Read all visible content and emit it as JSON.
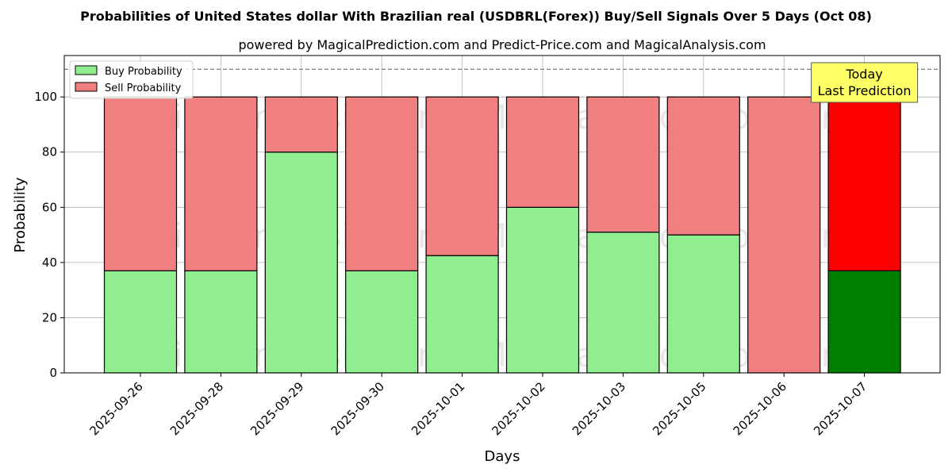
{
  "chart_data": {
    "type": "bar",
    "stacked": true,
    "title": "Probabilities of United States dollar With Brazilian real (USDBRL(Forex)) Buy/Sell Signals Over 5 Days (Oct 08)",
    "subtitle": "powered by MagicalPrediction.com and Predict-Price.com and MagicalAnalysis.com",
    "xlabel": "Days",
    "ylabel": "Probability",
    "ylim": [
      0,
      115
    ],
    "yticks": [
      0,
      20,
      40,
      60,
      80,
      100
    ],
    "grid": true,
    "legend_position": "top-left",
    "reference_line": 110,
    "categories": [
      "2025-09-26",
      "2025-09-28",
      "2025-09-29",
      "2025-09-30",
      "2025-10-01",
      "2025-10-02",
      "2025-10-03",
      "2025-10-05",
      "2025-10-06",
      "2025-10-07"
    ],
    "series": [
      {
        "name": "Buy Probability",
        "color": "#90ee90",
        "highlight_color": "#008000",
        "values": [
          37,
          37,
          80,
          37,
          42.5,
          60,
          51,
          50,
          0,
          37
        ]
      },
      {
        "name": "Sell Probability",
        "color": "#f08080",
        "highlight_color": "#ff0000",
        "values": [
          63,
          63,
          20,
          63,
          57.5,
          40,
          49,
          50,
          100,
          63
        ]
      }
    ],
    "highlight_index": 9,
    "annotation": {
      "lines": [
        "Today",
        "Last Prediction"
      ],
      "background": "#ffff66"
    },
    "watermarks": [
      "MagicalAnalysis.com",
      "MagicalPrediction.com",
      "MagicalAnalysis.com",
      "MagicalPrediction.com",
      "MagicalAnalysis.com",
      "MagicalPrediction.com"
    ]
  }
}
